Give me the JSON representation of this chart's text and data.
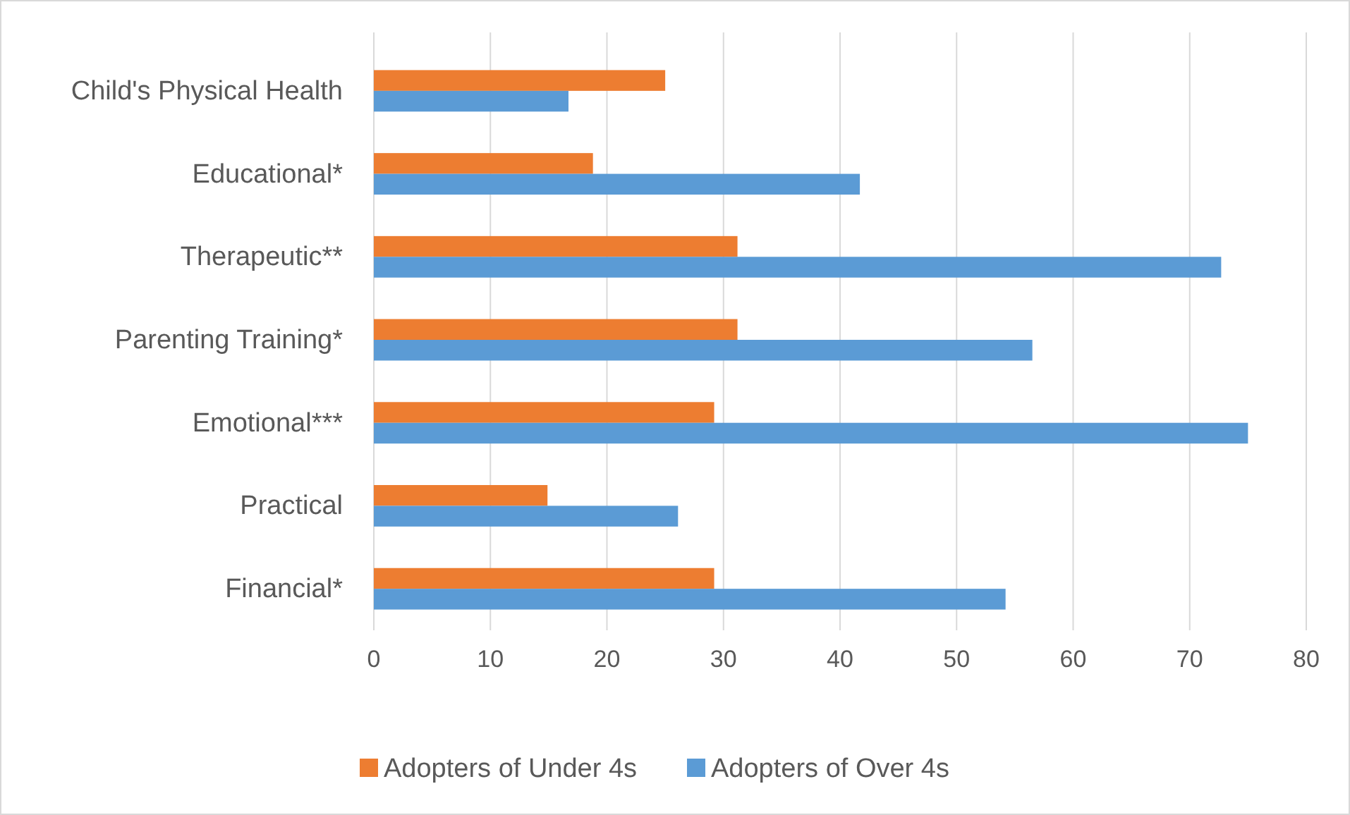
{
  "chart_data": {
    "type": "bar",
    "orientation": "horizontal",
    "categories": [
      "Child's Physical Health",
      "Educational*",
      "Therapeutic**",
      "Parenting Training*",
      "Emotional***",
      "Practical",
      "Financial*"
    ],
    "series": [
      {
        "name": "Adopters of Under 4s",
        "color": "#ed7d31",
        "values": [
          25,
          18.8,
          31.2,
          31.2,
          29.2,
          14.9,
          29.2
        ]
      },
      {
        "name": "Adopters of Over 4s",
        "color": "#5b9bd5",
        "values": [
          16.7,
          41.7,
          72.7,
          56.5,
          75,
          26.1,
          54.2
        ]
      }
    ],
    "xlim": [
      0,
      80
    ],
    "xticks": [
      0,
      10,
      20,
      30,
      40,
      50,
      60,
      70,
      80
    ],
    "grid": "x",
    "legend": "bottom"
  }
}
